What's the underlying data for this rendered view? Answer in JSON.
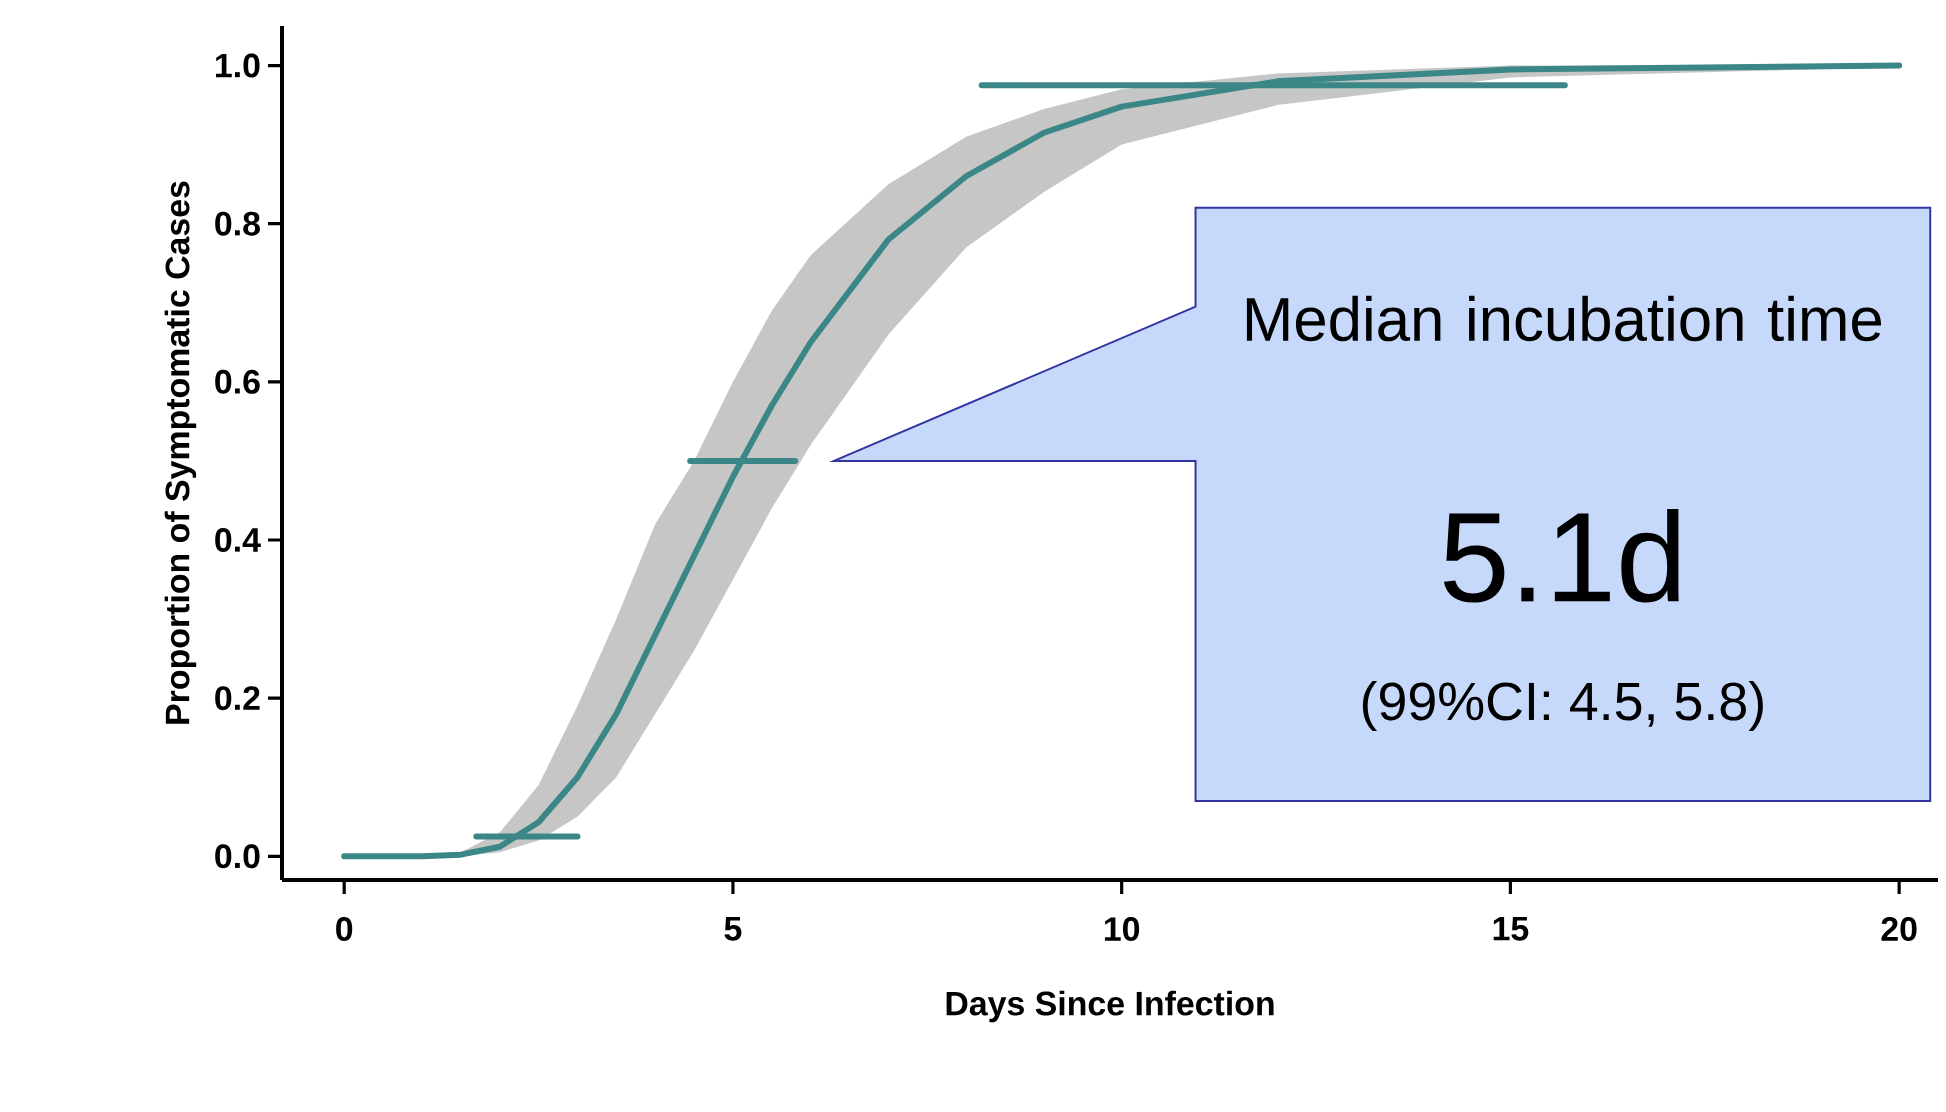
{
  "chart_data": {
    "type": "line",
    "xlabel": "Days Since Infection",
    "ylabel": "Proportion of Symptomatic Cases",
    "xlim": [
      -0.8,
      20.5
    ],
    "ylim": [
      -0.03,
      1.05
    ],
    "xticks": [
      0,
      5,
      10,
      15,
      20
    ],
    "yticks": [
      {
        "value": 0,
        "label": "0.0"
      },
      {
        "value": 0.2,
        "label": "0.2"
      },
      {
        "value": 0.4,
        "label": "0.4"
      },
      {
        "value": 0.6,
        "label": "0.6"
      },
      {
        "value": 0.8,
        "label": "0.8"
      },
      {
        "value": 1.0,
        "label": "1.0"
      }
    ],
    "series": [
      {
        "color": "#3b8686",
        "x": [
          0,
          1,
          1.5,
          2,
          2.5,
          3,
          3.5,
          4,
          4.5,
          5,
          5.5,
          6,
          7,
          8,
          9,
          10,
          12,
          15,
          20
        ],
        "values": [
          0,
          0,
          0.002,
          0.012,
          0.043,
          0.1,
          0.18,
          0.28,
          0.38,
          0.48,
          0.57,
          0.65,
          0.78,
          0.86,
          0.915,
          0.948,
          0.98,
          0.995,
          1.0
        ],
        "lower": [
          0,
          0,
          0,
          0.005,
          0.02,
          0.05,
          0.1,
          0.18,
          0.26,
          0.35,
          0.44,
          0.52,
          0.66,
          0.77,
          0.84,
          0.9,
          0.95,
          0.985,
          0.998
        ],
        "upper": [
          0,
          0,
          0.005,
          0.03,
          0.09,
          0.19,
          0.3,
          0.42,
          0.5,
          0.6,
          0.69,
          0.76,
          0.85,
          0.91,
          0.945,
          0.97,
          0.99,
          1.0,
          1.0
        ]
      },
      {
        "color": "#3b8686",
        "x": [
          1.7,
          3.0
        ],
        "values": [
          0.025,
          0.025
        ]
      },
      {
        "color": "#3b8686",
        "x": [
          4.45,
          5.8
        ],
        "values": [
          0.5,
          0.5
        ]
      },
      {
        "color": "#3b8686",
        "x": [
          8.2,
          15.7
        ],
        "values": [
          0.975,
          0.975
        ]
      }
    ],
    "annotations": [
      "Median incubation time",
      "5.1d",
      "(99%CI: 4.5, 5.8)"
    ]
  }
}
